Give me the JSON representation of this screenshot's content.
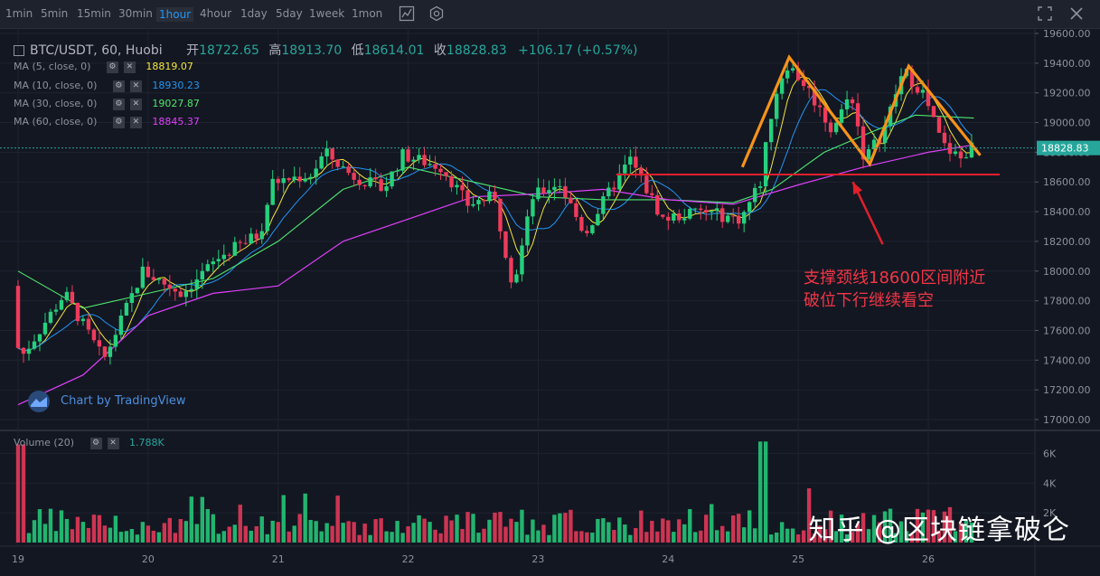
{
  "toolbar": {
    "intervals": [
      "1min",
      "5min",
      "15min",
      "30min",
      "1hour",
      "4hour",
      "1day",
      "5day",
      "1week",
      "1mon"
    ],
    "active": "1hour"
  },
  "legend": {
    "symbol": "BTC/USDT, 60, Huobi",
    "open_label": "开",
    "open": "18722.65",
    "high_label": "高",
    "high": "18913.70",
    "low_label": "低",
    "low": "18614.01",
    "close_label": "收",
    "close": "18828.83",
    "change": "+106.17 (+0.57%)"
  },
  "mas": [
    {
      "label": "MA (5, close, 0)",
      "value": "18819.07",
      "color": "#f5e63a"
    },
    {
      "label": "MA (10, close, 0)",
      "value": "18930.23",
      "color": "#2196f3"
    },
    {
      "label": "MA (30, close, 0)",
      "value": "19027.87",
      "color": "#4ee76d"
    },
    {
      "label": "MA (60, close, 0)",
      "value": "18845.37",
      "color": "#e040fb"
    }
  ],
  "volume": {
    "label": "Volume (20)",
    "value": "1.788K"
  },
  "branding": {
    "tv_text": "Chart by TradingView"
  },
  "annotation": {
    "line1": "支撑颈线18600区间附近",
    "line2": "破位下行继续看空"
  },
  "watermark": "知乎 @区块链拿破仑",
  "chart_data": {
    "type": "candlestick",
    "price_axis": {
      "ticks": [
        17000,
        17200,
        17400,
        17600,
        17800,
        18000,
        18200,
        18400,
        18600,
        18800,
        19000,
        19200,
        19400,
        19600
      ],
      "range": [
        16940,
        19640
      ]
    },
    "current_price": "18828.83",
    "volume_axis": {
      "ticks": [
        "6K",
        "4K",
        "2K"
      ],
      "range": [
        0,
        7000
      ]
    },
    "x_ticks": [
      "19",
      "20",
      "21",
      "22",
      "23",
      "24",
      "25",
      "26"
    ],
    "key_points": [
      {
        "day": 19.0,
        "price": 17900
      },
      {
        "day": 19.05,
        "price": 17400
      },
      {
        "day": 19.4,
        "price": 17850
      },
      {
        "day": 19.7,
        "price": 17400
      },
      {
        "day": 20.0,
        "price": 18000
      },
      {
        "day": 20.3,
        "price": 17850
      },
      {
        "day": 20.6,
        "price": 18100
      },
      {
        "day": 20.9,
        "price": 18250
      },
      {
        "day": 21.0,
        "price": 18600
      },
      {
        "day": 21.3,
        "price": 18650
      },
      {
        "day": 21.4,
        "price": 18800
      },
      {
        "day": 21.6,
        "price": 18650
      },
      {
        "day": 21.85,
        "price": 18550
      },
      {
        "day": 22.0,
        "price": 18780
      },
      {
        "day": 22.3,
        "price": 18700
      },
      {
        "day": 22.5,
        "price": 18450
      },
      {
        "day": 22.7,
        "price": 18500
      },
      {
        "day": 22.85,
        "price": 17900
      },
      {
        "day": 23.0,
        "price": 18500
      },
      {
        "day": 23.2,
        "price": 18600
      },
      {
        "day": 23.4,
        "price": 18250
      },
      {
        "day": 23.6,
        "price": 18550
      },
      {
        "day": 23.75,
        "price": 18750
      },
      {
        "day": 24.0,
        "price": 18350
      },
      {
        "day": 24.3,
        "price": 18400
      },
      {
        "day": 24.6,
        "price": 18350
      },
      {
        "day": 24.75,
        "price": 18600
      },
      {
        "day": 24.85,
        "price": 19150
      },
      {
        "day": 24.95,
        "price": 19400
      },
      {
        "day": 25.1,
        "price": 19250
      },
      {
        "day": 25.3,
        "price": 18950
      },
      {
        "day": 25.45,
        "price": 19200
      },
      {
        "day": 25.55,
        "price": 18750
      },
      {
        "day": 25.7,
        "price": 18950
      },
      {
        "day": 25.85,
        "price": 19350
      },
      {
        "day": 26.0,
        "price": 19200
      },
      {
        "day": 26.15,
        "price": 18850
      },
      {
        "day": 26.3,
        "price": 18750
      },
      {
        "day": 26.35,
        "price": 18829
      }
    ],
    "ma_lines": {
      "ma60": [
        [
          19.0,
          17100
        ],
        [
          19.5,
          17300
        ],
        [
          20.0,
          17700
        ],
        [
          20.5,
          17850
        ],
        [
          21.0,
          17900
        ],
        [
          21.5,
          18200
        ],
        [
          22.0,
          18350
        ],
        [
          22.5,
          18500
        ],
        [
          23.0,
          18520
        ],
        [
          23.5,
          18550
        ],
        [
          24.0,
          18480
        ],
        [
          24.5,
          18450
        ],
        [
          25.0,
          18580
        ],
        [
          25.5,
          18700
        ],
        [
          26.0,
          18800
        ],
        [
          26.35,
          18850
        ]
      ],
      "ma30": [
        [
          19.0,
          18000
        ],
        [
          19.5,
          17750
        ],
        [
          20.0,
          17850
        ],
        [
          20.5,
          17950
        ],
        [
          21.0,
          18200
        ],
        [
          21.5,
          18550
        ],
        [
          22.0,
          18700
        ],
        [
          22.5,
          18600
        ],
        [
          23.0,
          18500
        ],
        [
          23.5,
          18480
        ],
        [
          24.0,
          18480
        ],
        [
          24.5,
          18460
        ],
        [
          24.8,
          18550
        ],
        [
          25.2,
          18800
        ],
        [
          25.6,
          18950
        ],
        [
          25.9,
          19050
        ],
        [
          26.35,
          19030
        ]
      ]
    },
    "pattern_lines": {
      "double_top": [
        [
          24.57,
          18700
        ],
        [
          24.93,
          19440
        ],
        [
          25.55,
          18720
        ],
        [
          25.85,
          19380
        ],
        [
          26.4,
          18780
        ]
      ],
      "neckline": [
        [
          23.6,
          18650
        ],
        [
          26.55,
          18650
        ]
      ],
      "arrow": {
        "from": [
          25.65,
          18180
        ],
        "to": [
          25.42,
          18600
        ]
      }
    }
  }
}
